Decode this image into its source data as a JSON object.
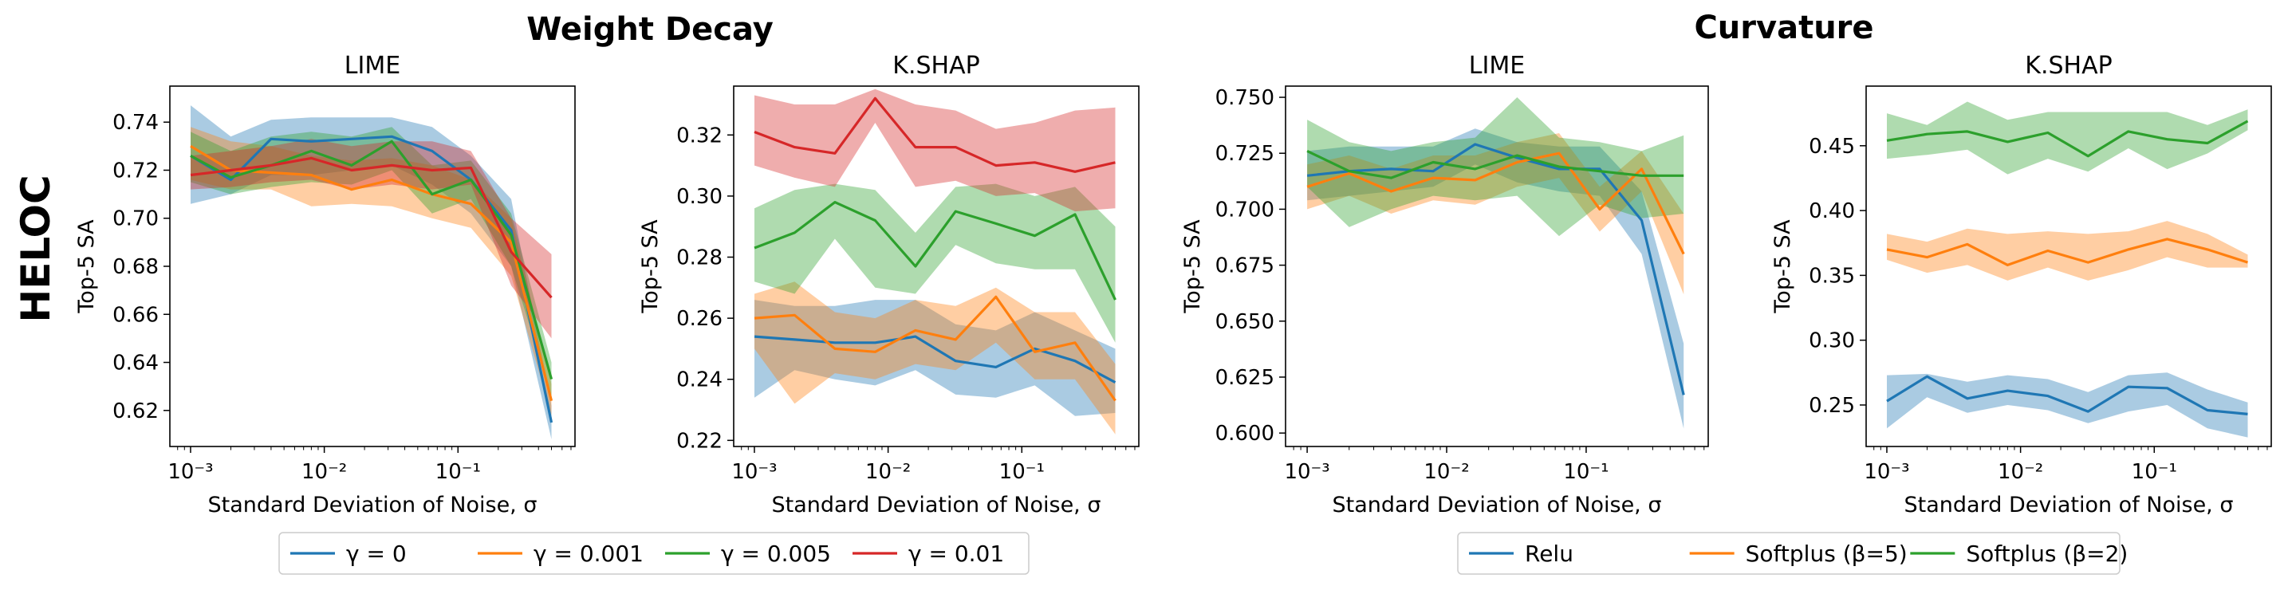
{
  "figure": {
    "row_label": "HELOC",
    "groups": [
      {
        "title": "Weight Decay"
      },
      {
        "title": "Curvature"
      }
    ]
  },
  "colors": {
    "blue": "#1f77b4",
    "orange": "#ff7f0e",
    "green": "#2ca02c",
    "red": "#d62728"
  },
  "chart_data": [
    {
      "type": "line",
      "group": "Weight Decay",
      "title": "LIME",
      "xlabel": "Standard Deviation of Noise, σ",
      "ylabel": "Top-5 SA",
      "xscale": "log",
      "xlim": [
        0.0007,
        0.75
      ],
      "ylim": [
        0.605,
        0.755
      ],
      "yticks": [
        0.62,
        0.64,
        0.66,
        0.68,
        0.7,
        0.72,
        0.74
      ],
      "ytick_labels": [
        "0.62",
        "0.64",
        "0.66",
        "0.68",
        "0.70",
        "0.72",
        "0.74"
      ],
      "xticks": [
        0.001,
        0.01,
        0.1
      ],
      "xtick_labels": [
        "10⁻³",
        "10⁻²",
        "10⁻¹"
      ],
      "x": [
        0.001,
        0.002,
        0.004,
        0.008,
        0.016,
        0.032,
        0.064,
        0.125,
        0.25,
        0.5
      ],
      "series": [
        {
          "name": "γ = 0",
          "color": "#1f77b4",
          "values": [
            0.726,
            0.716,
            0.733,
            0.732,
            0.733,
            0.734,
            0.728,
            0.716,
            0.695,
            0.615
          ],
          "lower": [
            0.706,
            0.71,
            0.718,
            0.718,
            0.72,
            0.722,
            0.714,
            0.702,
            0.68,
            0.608
          ],
          "upper": [
            0.747,
            0.734,
            0.741,
            0.742,
            0.742,
            0.742,
            0.738,
            0.726,
            0.708,
            0.622
          ]
        },
        {
          "name": "γ = 0.001",
          "color": "#ff7f0e",
          "values": [
            0.73,
            0.72,
            0.719,
            0.718,
            0.712,
            0.716,
            0.71,
            0.706,
            0.69,
            0.624
          ],
          "lower": [
            0.716,
            0.712,
            0.712,
            0.705,
            0.706,
            0.705,
            0.7,
            0.696,
            0.676,
            0.618
          ],
          "upper": [
            0.738,
            0.732,
            0.73,
            0.726,
            0.724,
            0.725,
            0.722,
            0.716,
            0.7,
            0.631
          ]
        },
        {
          "name": "γ = 0.005",
          "color": "#2ca02c",
          "values": [
            0.726,
            0.717,
            0.722,
            0.728,
            0.722,
            0.732,
            0.71,
            0.716,
            0.693,
            0.633
          ],
          "lower": [
            0.715,
            0.71,
            0.713,
            0.715,
            0.714,
            0.72,
            0.702,
            0.708,
            0.68,
            0.626
          ],
          "upper": [
            0.736,
            0.728,
            0.734,
            0.736,
            0.734,
            0.738,
            0.722,
            0.724,
            0.702,
            0.64
          ]
        },
        {
          "name": "γ = 0.01",
          "color": "#d62728",
          "values": [
            0.718,
            0.72,
            0.722,
            0.725,
            0.72,
            0.722,
            0.72,
            0.721,
            0.686,
            0.667
          ],
          "lower": [
            0.712,
            0.713,
            0.715,
            0.716,
            0.712,
            0.714,
            0.712,
            0.714,
            0.672,
            0.65
          ],
          "upper": [
            0.726,
            0.728,
            0.73,
            0.733,
            0.73,
            0.732,
            0.732,
            0.728,
            0.7,
            0.685
          ]
        }
      ]
    },
    {
      "type": "line",
      "group": "Weight Decay",
      "title": "K.SHAP",
      "xlabel": "Standard Deviation of Noise, σ",
      "ylabel": "Top-5 SA",
      "xscale": "log",
      "xlim": [
        0.0007,
        0.75
      ],
      "ylim": [
        0.218,
        0.336
      ],
      "yticks": [
        0.22,
        0.24,
        0.26,
        0.28,
        0.3,
        0.32
      ],
      "ytick_labels": [
        "0.22",
        "0.24",
        "0.26",
        "0.28",
        "0.30",
        "0.32"
      ],
      "xticks": [
        0.001,
        0.01,
        0.1
      ],
      "xtick_labels": [
        "10⁻³",
        "10⁻²",
        "10⁻¹"
      ],
      "x": [
        0.001,
        0.002,
        0.004,
        0.008,
        0.016,
        0.032,
        0.064,
        0.125,
        0.25,
        0.5
      ],
      "series": [
        {
          "name": "γ = 0",
          "color": "#1f77b4",
          "values": [
            0.254,
            0.253,
            0.252,
            0.252,
            0.254,
            0.246,
            0.244,
            0.25,
            0.246,
            0.239
          ],
          "lower": [
            0.234,
            0.243,
            0.24,
            0.238,
            0.243,
            0.235,
            0.234,
            0.238,
            0.228,
            0.229
          ],
          "upper": [
            0.266,
            0.264,
            0.264,
            0.266,
            0.266,
            0.258,
            0.256,
            0.262,
            0.256,
            0.25
          ]
        },
        {
          "name": "γ = 0.001",
          "color": "#ff7f0e",
          "values": [
            0.26,
            0.261,
            0.25,
            0.249,
            0.256,
            0.253,
            0.267,
            0.249,
            0.252,
            0.233
          ],
          "lower": [
            0.25,
            0.232,
            0.242,
            0.24,
            0.245,
            0.243,
            0.252,
            0.24,
            0.24,
            0.222
          ],
          "upper": [
            0.268,
            0.272,
            0.262,
            0.26,
            0.266,
            0.264,
            0.27,
            0.262,
            0.262,
            0.245
          ]
        },
        {
          "name": "γ = 0.005",
          "color": "#2ca02c",
          "values": [
            0.283,
            0.288,
            0.298,
            0.292,
            0.277,
            0.295,
            0.291,
            0.287,
            0.294,
            0.266
          ],
          "lower": [
            0.272,
            0.268,
            0.286,
            0.27,
            0.268,
            0.284,
            0.278,
            0.276,
            0.276,
            0.252
          ],
          "upper": [
            0.296,
            0.302,
            0.304,
            0.302,
            0.288,
            0.303,
            0.304,
            0.3,
            0.303,
            0.29
          ]
        },
        {
          "name": "γ = 0.01",
          "color": "#d62728",
          "values": [
            0.321,
            0.316,
            0.314,
            0.332,
            0.316,
            0.316,
            0.31,
            0.311,
            0.308,
            0.311
          ],
          "lower": [
            0.31,
            0.306,
            0.303,
            0.324,
            0.303,
            0.305,
            0.3,
            0.301,
            0.295,
            0.296
          ],
          "upper": [
            0.333,
            0.33,
            0.33,
            0.335,
            0.33,
            0.328,
            0.322,
            0.324,
            0.328,
            0.329
          ]
        }
      ]
    },
    {
      "type": "line",
      "group": "Curvature",
      "title": "LIME",
      "xlabel": "Standard Deviation of Noise, σ",
      "ylabel": "Top-5 SA",
      "xscale": "log",
      "xlim": [
        0.0007,
        0.75
      ],
      "ylim": [
        0.594,
        0.755
      ],
      "yticks": [
        0.6,
        0.625,
        0.65,
        0.675,
        0.7,
        0.725,
        0.75
      ],
      "ytick_labels": [
        "0.600",
        "0.625",
        "0.650",
        "0.675",
        "0.700",
        "0.725",
        "0.750"
      ],
      "xticks": [
        0.001,
        0.01,
        0.1
      ],
      "xtick_labels": [
        "10⁻³",
        "10⁻²",
        "10⁻¹"
      ],
      "x": [
        0.001,
        0.002,
        0.004,
        0.008,
        0.016,
        0.032,
        0.064,
        0.125,
        0.25,
        0.5
      ],
      "series": [
        {
          "name": "Relu",
          "color": "#1f77b4",
          "values": [
            0.715,
            0.717,
            0.718,
            0.717,
            0.729,
            0.723,
            0.718,
            0.718,
            0.695,
            0.617
          ],
          "lower": [
            0.704,
            0.706,
            0.708,
            0.71,
            0.72,
            0.712,
            0.708,
            0.706,
            0.68,
            0.602
          ],
          "upper": [
            0.726,
            0.728,
            0.728,
            0.728,
            0.736,
            0.73,
            0.728,
            0.728,
            0.708,
            0.64
          ]
        },
        {
          "name": "Softplus (β=5)",
          "color": "#ff7f0e",
          "values": [
            0.71,
            0.716,
            0.708,
            0.714,
            0.713,
            0.721,
            0.725,
            0.7,
            0.718,
            0.68
          ],
          "lower": [
            0.7,
            0.706,
            0.698,
            0.704,
            0.702,
            0.71,
            0.714,
            0.69,
            0.708,
            0.662
          ],
          "upper": [
            0.72,
            0.724,
            0.718,
            0.724,
            0.724,
            0.73,
            0.734,
            0.71,
            0.726,
            0.698
          ]
        },
        {
          "name": "Softplus (β=2)",
          "color": "#2ca02c",
          "values": [
            0.726,
            0.717,
            0.714,
            0.721,
            0.718,
            0.724,
            0.719,
            0.717,
            0.715,
            0.715
          ],
          "lower": [
            0.71,
            0.692,
            0.7,
            0.706,
            0.704,
            0.706,
            0.688,
            0.702,
            0.696,
            0.698
          ],
          "upper": [
            0.74,
            0.73,
            0.726,
            0.73,
            0.732,
            0.75,
            0.732,
            0.73,
            0.726,
            0.733
          ]
        }
      ]
    },
    {
      "type": "line",
      "group": "Curvature",
      "title": "K.SHAP",
      "xlabel": "Standard Deviation of Noise, σ",
      "ylabel": "Top-5 SA",
      "xscale": "log",
      "xlim": [
        0.0007,
        0.75
      ],
      "ylim": [
        0.218,
        0.496
      ],
      "yticks": [
        0.25,
        0.3,
        0.35,
        0.4,
        0.45
      ],
      "ytick_labels": [
        "0.25",
        "0.30",
        "0.35",
        "0.40",
        "0.45"
      ],
      "xticks": [
        0.001,
        0.01,
        0.1
      ],
      "xtick_labels": [
        "10⁻³",
        "10⁻²",
        "10⁻¹"
      ],
      "x": [
        0.001,
        0.002,
        0.004,
        0.008,
        0.016,
        0.032,
        0.064,
        0.125,
        0.25,
        0.5
      ],
      "series": [
        {
          "name": "Relu",
          "color": "#1f77b4",
          "values": [
            0.253,
            0.272,
            0.255,
            0.261,
            0.257,
            0.245,
            0.264,
            0.263,
            0.246,
            0.243
          ],
          "lower": [
            0.232,
            0.256,
            0.244,
            0.25,
            0.246,
            0.236,
            0.245,
            0.25,
            0.232,
            0.225
          ],
          "upper": [
            0.273,
            0.274,
            0.268,
            0.273,
            0.27,
            0.26,
            0.273,
            0.275,
            0.262,
            0.252
          ]
        },
        {
          "name": "Softplus (β=5)",
          "color": "#ff7f0e",
          "values": [
            0.37,
            0.364,
            0.374,
            0.358,
            0.369,
            0.36,
            0.37,
            0.378,
            0.37,
            0.36
          ],
          "lower": [
            0.362,
            0.352,
            0.358,
            0.346,
            0.356,
            0.346,
            0.354,
            0.364,
            0.356,
            0.356
          ],
          "upper": [
            0.382,
            0.376,
            0.386,
            0.382,
            0.384,
            0.382,
            0.384,
            0.392,
            0.382,
            0.366
          ]
        },
        {
          "name": "Softplus (β=2)",
          "color": "#2ca02c",
          "values": [
            0.454,
            0.459,
            0.461,
            0.453,
            0.46,
            0.442,
            0.461,
            0.455,
            0.452,
            0.469
          ],
          "lower": [
            0.44,
            0.443,
            0.447,
            0.428,
            0.44,
            0.43,
            0.448,
            0.432,
            0.444,
            0.462
          ],
          "upper": [
            0.475,
            0.466,
            0.484,
            0.47,
            0.476,
            0.476,
            0.476,
            0.476,
            0.466,
            0.478
          ]
        }
      ]
    }
  ],
  "legends": [
    {
      "group": "Weight Decay",
      "placement": "bottom-center",
      "entries": [
        {
          "label": "γ = 0",
          "color": "#1f77b4"
        },
        {
          "label": "γ = 0.001",
          "color": "#ff7f0e"
        },
        {
          "label": "γ = 0.005",
          "color": "#2ca02c"
        },
        {
          "label": "γ = 0.01",
          "color": "#d62728"
        }
      ]
    },
    {
      "group": "Curvature",
      "placement": "bottom-center",
      "entries": [
        {
          "label": "Relu",
          "color": "#1f77b4"
        },
        {
          "label": "Softplus (β=5)",
          "color": "#ff7f0e"
        },
        {
          "label": "Softplus (β=2)",
          "color": "#2ca02c"
        }
      ]
    }
  ]
}
